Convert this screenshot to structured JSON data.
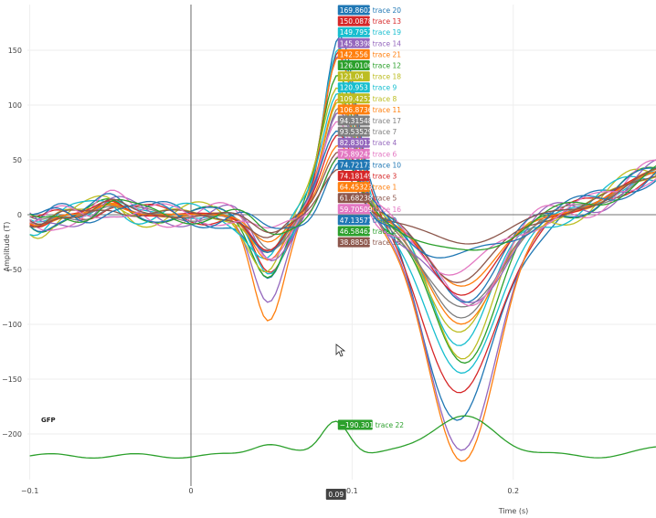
{
  "chart_data": {
    "type": "line",
    "xlabel": "Time (s)",
    "ylabel": "Amplitude (T)",
    "xlim": [
      -0.1,
      0.29
    ],
    "ylim": [
      -250,
      190
    ],
    "x_ticks": [
      {
        "value": -0.1,
        "label": "−0.1"
      },
      {
        "value": 0,
        "label": "0"
      },
      {
        "value": 0.1,
        "label": "0.1"
      },
      {
        "value": 0.2,
        "label": "0.2"
      }
    ],
    "y_ticks": [
      {
        "value": 150,
        "label": "150"
      },
      {
        "value": 100,
        "label": "100"
      },
      {
        "value": 50,
        "label": "50"
      },
      {
        "value": 0,
        "label": "0"
      },
      {
        "value": -50,
        "label": "−50"
      },
      {
        "value": -100,
        "label": "−100"
      },
      {
        "value": -150,
        "label": "−150"
      },
      {
        "value": -200,
        "label": "−200"
      }
    ],
    "grid": true,
    "gfp_label": "GFP",
    "hover_x": {
      "value": 0.09,
      "label": "0.09"
    },
    "series": [
      {
        "name": "trace 20",
        "hover": "169.8602",
        "color": "#1f77b4",
        "peak": 170,
        "trough": -190,
        "pre_dip": -70
      },
      {
        "name": "trace 13",
        "hover": "150.0878",
        "color": "#d62728",
        "peak": 150,
        "trough": -170,
        "pre_dip": -60
      },
      {
        "name": "trace 19",
        "hover": "149.7952",
        "color": "#17becf",
        "peak": 150,
        "trough": -148,
        "pre_dip": -55
      },
      {
        "name": "trace 14",
        "hover": "145.8398",
        "color": "#9467bd",
        "peak": 146,
        "trough": -215,
        "pre_dip": -80
      },
      {
        "name": "trace 21",
        "hover": "142.556",
        "color": "#ff7f0e",
        "peak": 143,
        "trough": -225,
        "pre_dip": -95
      },
      {
        "name": "trace 12",
        "hover": "126.0106",
        "color": "#2ca02c",
        "peak": 126,
        "trough": -130,
        "pre_dip": -50
      },
      {
        "name": "trace 18",
        "hover": "121.04",
        "color": "#bcbd22",
        "peak": 121,
        "trough": -120,
        "pre_dip": -45
      },
      {
        "name": "trace 9",
        "hover": "120.953",
        "color": "#17becf",
        "peak": 121,
        "trough": -110,
        "pre_dip": -40
      },
      {
        "name": "trace 8",
        "hover": "109.4252",
        "color": "#bcbd22",
        "peak": 109,
        "trough": -105,
        "pre_dip": -38
      },
      {
        "name": "trace 11",
        "hover": "106.8736",
        "color": "#ff7f0e",
        "peak": 107,
        "trough": -100,
        "pre_dip": -42
      },
      {
        "name": "trace 17",
        "hover": "94.31548",
        "color": "#7f7f7f",
        "peak": 94,
        "trough": -95,
        "pre_dip": -35
      },
      {
        "name": "trace 7",
        "hover": "93.53529",
        "color": "#7f7f7f",
        "peak": 94,
        "trough": -90,
        "pre_dip": -33
      },
      {
        "name": "trace 4",
        "hover": "82.83012",
        "color": "#9467bd",
        "peak": 83,
        "trough": -85,
        "pre_dip": -36
      },
      {
        "name": "trace 6",
        "hover": "75.89242",
        "color": "#e377c2",
        "peak": 76,
        "trough": -80,
        "pre_dip": -30
      },
      {
        "name": "trace 10",
        "hover": "74.72173",
        "color": "#1f77b4",
        "peak": 75,
        "trough": -75,
        "pre_dip": -28
      },
      {
        "name": "trace 3",
        "hover": "74.18149",
        "color": "#d62728",
        "peak": 74,
        "trough": -72,
        "pre_dip": -32
      },
      {
        "name": "trace 1",
        "hover": "64.45323",
        "color": "#ff7f0e",
        "peak": 64,
        "trough": -65,
        "pre_dip": -25
      },
      {
        "name": "trace 5",
        "hover": "61.68238",
        "color": "#8c564b",
        "peak": 62,
        "trough": -60,
        "pre_dip": -24
      },
      {
        "name": "trace 16",
        "hover": "59.70509",
        "color": "#e377c2",
        "peak": 60,
        "trough": -55,
        "pre_dip": -22
      },
      {
        "name": "trace 0",
        "hover": "47.13577",
        "color": "#1f77b4",
        "peak": 47,
        "trough": -45,
        "pre_dip": -20
      },
      {
        "name": "trace 2",
        "hover": "46.58462",
        "color": "#2ca02c",
        "peak": 47,
        "trough": -40,
        "pre_dip": -18
      },
      {
        "name": "trace 15",
        "hover": "38.88503",
        "color": "#8c564b",
        "peak": 39,
        "trough": -28,
        "pre_dip": -15
      }
    ],
    "gfp_series": {
      "name": "trace 22",
      "hover": "−190.3018",
      "color": "#2ca02c"
    }
  }
}
